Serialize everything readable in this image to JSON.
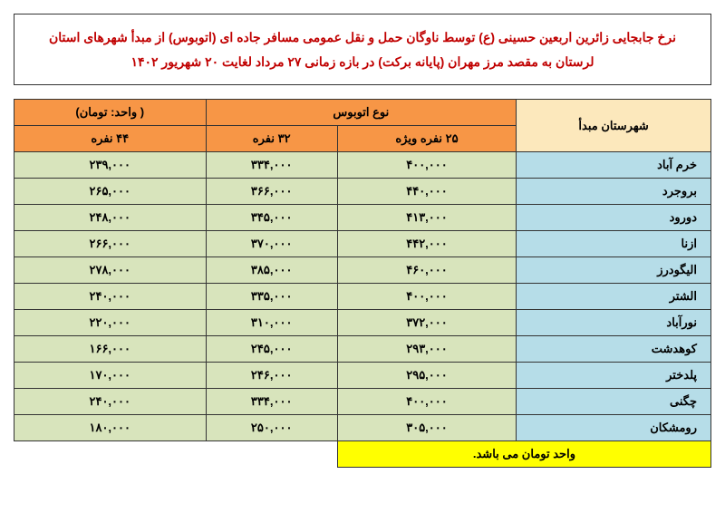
{
  "title": "نرخ جابجایی زائرین اربعین حسینی (ع) توسط ناوگان حمل و نقل عمومی مسافر جاده ای (اتوبوس) از مبدأ شهرهای استان لرستان به مقصد مرز مهران (پایانه برکت) در بازه زمانی ۲۷ مرداد لغایت ۲۰ شهریور ۱۴۰۲",
  "headers": {
    "origin": "شهرستان مبدأ",
    "busType": "نوع اتوبوس",
    "unit": "( واحد: تومان)",
    "col25": "۲۵ نفره ویژه",
    "col32": "۳۲ نفره",
    "col44": "۴۴ نفره"
  },
  "rows": [
    {
      "city": "خرم آباد",
      "p25": "۴۰۰,۰۰۰",
      "p32": "۳۳۴,۰۰۰",
      "p44": "۲۳۹,۰۰۰"
    },
    {
      "city": "بروجرد",
      "p25": "۴۴۰,۰۰۰",
      "p32": "۳۶۶,۰۰۰",
      "p44": "۲۶۵,۰۰۰"
    },
    {
      "city": "دورود",
      "p25": "۴۱۳,۰۰۰",
      "p32": "۳۴۵,۰۰۰",
      "p44": "۲۴۸,۰۰۰"
    },
    {
      "city": "ازنا",
      "p25": "۴۴۲,۰۰۰",
      "p32": "۳۷۰,۰۰۰",
      "p44": "۲۶۶,۰۰۰"
    },
    {
      "city": "الیگودرز",
      "p25": "۴۶۰,۰۰۰",
      "p32": "۳۸۵,۰۰۰",
      "p44": "۲۷۸,۰۰۰"
    },
    {
      "city": "الشتر",
      "p25": "۴۰۰,۰۰۰",
      "p32": "۳۳۵,۰۰۰",
      "p44": "۲۴۰,۰۰۰"
    },
    {
      "city": "نورآباد",
      "p25": "۳۷۲,۰۰۰",
      "p32": "۳۱۰,۰۰۰",
      "p44": "۲۲۰,۰۰۰"
    },
    {
      "city": "کوهدشت",
      "p25": "۲۹۳,۰۰۰",
      "p32": "۲۴۵,۰۰۰",
      "p44": "۱۶۶,۰۰۰"
    },
    {
      "city": "پلدختر",
      "p25": "۲۹۵,۰۰۰",
      "p32": "۲۴۶,۰۰۰",
      "p44": "۱۷۰,۰۰۰"
    },
    {
      "city": "چگنی",
      "p25": "۴۰۰,۰۰۰",
      "p32": "۳۳۴,۰۰۰",
      "p44": "۲۴۰,۰۰۰"
    },
    {
      "city": "رومشکان",
      "p25": "۳۰۵,۰۰۰",
      "p32": "۲۵۰,۰۰۰",
      "p44": "۱۸۰,۰۰۰"
    }
  ],
  "footer": "واحد تومان می باشد.",
  "colors": {
    "titleText": "#c00000",
    "headerOrange": "#f79646",
    "headerCity": "#fce8bc",
    "cityCell": "#b6dde8",
    "dataCell": "#d8e4bc",
    "unitCell": "#ffff00",
    "border": "#333333"
  }
}
